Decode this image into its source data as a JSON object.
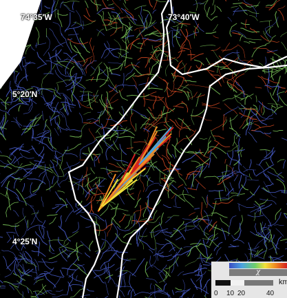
{
  "map": {
    "coordinates": {
      "lon_west": "74°35'W",
      "lon_east": "73°40'W",
      "lat_north": "5°20'N",
      "lat_south": "4°25'N"
    },
    "legend": {
      "colorbar_label": "χ",
      "colors": [
        "#3a4dc4",
        "#4aa3e0",
        "#6fd06a",
        "#f2e23a",
        "#f08a22",
        "#d21f1f"
      ],
      "scale_unit": "km",
      "scale_ticks": [
        "0",
        "10",
        "20",
        "40"
      ]
    },
    "colors": {
      "background": "#000000",
      "boundary": "#ffffff",
      "low_chi": "#4a5fd0",
      "mid_chi": "#7cc85a",
      "high_chi": "#d64a22"
    }
  }
}
